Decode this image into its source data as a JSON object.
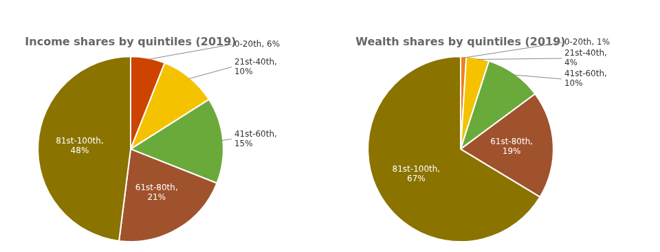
{
  "chart_data": [
    {
      "type": "pie",
      "title": "Income shares by quintiles (2019)",
      "categories": [
        "0-20th",
        "21st-40th",
        "41st-60th",
        "61st-80th",
        "81st-100th"
      ],
      "values": [
        6,
        10,
        15,
        21,
        48
      ],
      "value_labels": [
        "0-20th, 6%",
        "21st-40th,\n10%",
        "41st-60th,\n15%",
        "61st-80th,\n21%",
        "81st-100th,\n48%"
      ],
      "colors": [
        "#cc4400",
        "#f5c200",
        "#6aaa3a",
        "#a0522d",
        "#8b7300"
      ],
      "data_labels": true
    },
    {
      "type": "pie",
      "title": "Wealth shares by quintiles (2019)",
      "categories": [
        "0-20th",
        "21st-40th",
        "41st-60th",
        "61st-80th",
        "81st-100th"
      ],
      "values": [
        1,
        4,
        10,
        19,
        67
      ],
      "value_labels": [
        "0-20th, 1%",
        "21st-40th,\n4%",
        "41st-60th,\n10%",
        "61st-80th,\n19%",
        "81st-100th,\n67%"
      ],
      "colors": [
        "#f08020",
        "#f5c200",
        "#6aaa3a",
        "#a0522d",
        "#8b7300"
      ],
      "data_labels": true
    }
  ]
}
